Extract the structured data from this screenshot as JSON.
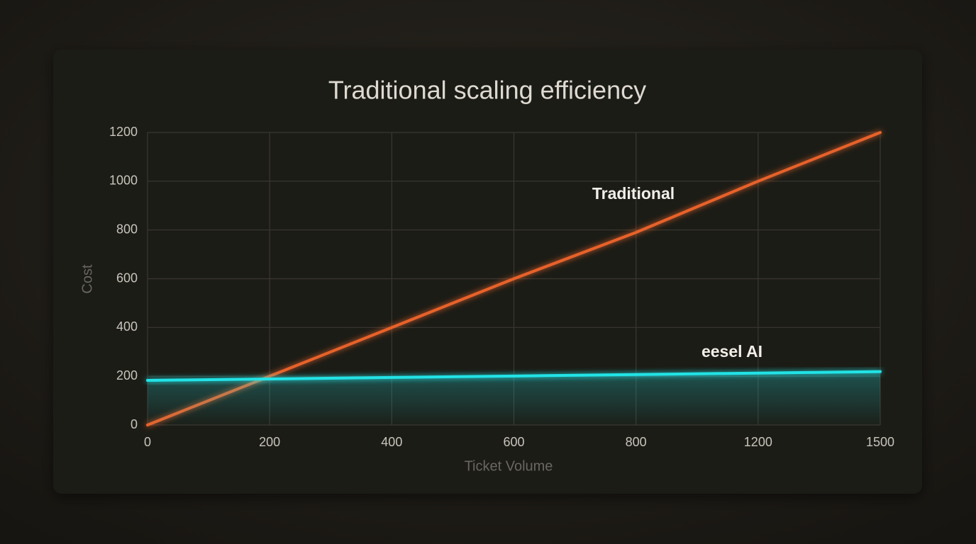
{
  "chart_data": {
    "type": "line",
    "title": "Traditional scaling efficiency",
    "x_label": "Ticket Volume",
    "y_label": "Cost",
    "categories": [
      "0",
      "200",
      "400",
      "600",
      "800",
      "1200",
      "1500"
    ],
    "series": [
      {
        "name": "Traditional",
        "color": "#e8622c",
        "values": [
          0,
          200,
          400,
          600,
          790,
          1000,
          1200
        ]
      },
      {
        "name": "eesel AI",
        "color": "#22e3e6",
        "values": [
          183,
          189,
          195,
          201,
          207,
          213,
          219
        ]
      }
    ],
    "ylim": [
      0,
      1200
    ],
    "yticks": [
      0,
      200,
      400,
      600,
      800,
      1000,
      1200
    ],
    "grid": true
  }
}
